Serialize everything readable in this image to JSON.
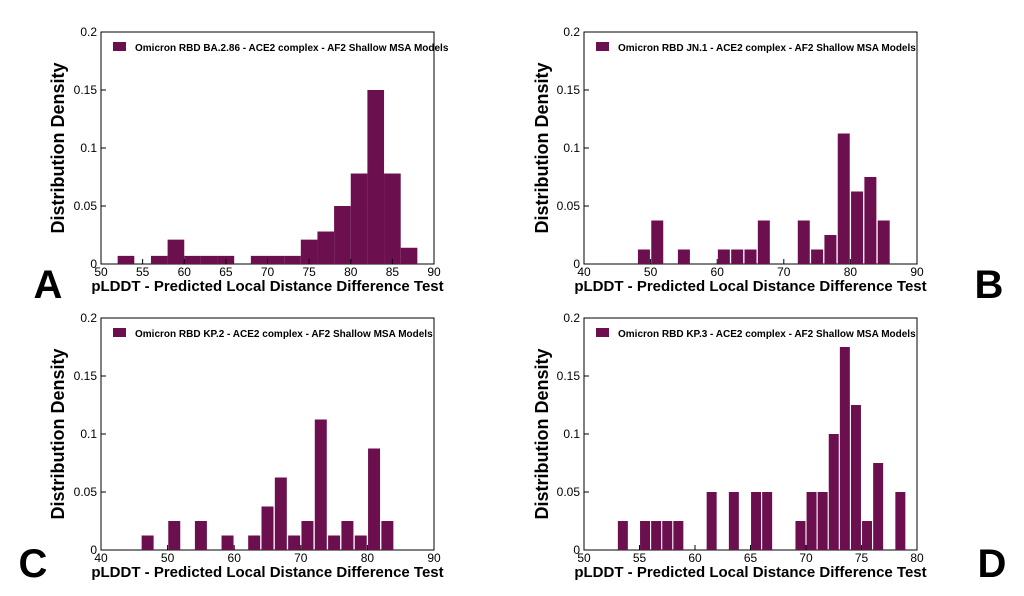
{
  "chart_data": [
    {
      "panel_label": "A",
      "type": "bar",
      "legend": "Omicron RBD BA.2.86 - ACE2 complex - AF2 Shallow MSA Models",
      "legend_position": "top-left",
      "xlabel": "pLDDT - Predicted Local Distance Difference Test",
      "ylabel": "Distribution Density",
      "xlim": [
        50,
        90
      ],
      "ylim": [
        0,
        0.2
      ],
      "xticks": [
        "50",
        "55",
        "60",
        "65",
        "70",
        "75",
        "80",
        "85",
        "90"
      ],
      "yticks": [
        "0",
        "0.05",
        "0.1",
        "0.15",
        "0.2"
      ],
      "color": "#6b0f4e",
      "bin_width": 2,
      "x": [
        53,
        57,
        59,
        61,
        63,
        65,
        69,
        71,
        73,
        75,
        77,
        79,
        81,
        83,
        85,
        87
      ],
      "values": [
        0.007,
        0.007,
        0.021,
        0.007,
        0.007,
        0.007,
        0.007,
        0.007,
        0.007,
        0.021,
        0.028,
        0.05,
        0.078,
        0.15,
        0.078,
        0.014
      ]
    },
    {
      "panel_label": "B",
      "type": "bar",
      "legend": "Omicron RBD JN.1 - ACE2 complex - AF2 Shallow MSA Models",
      "legend_position": "top-left",
      "xlabel": "pLDDT - Predicted Local Distance Difference Test",
      "ylabel": "Distribution Density",
      "xlim": [
        40,
        90
      ],
      "ylim": [
        0,
        0.2
      ],
      "xticks": [
        "40",
        "50",
        "60",
        "70",
        "80",
        "90"
      ],
      "yticks": [
        "0",
        "0.05",
        "0.1",
        "0.15",
        "0.2"
      ],
      "color": "#6b0f4e",
      "bin_width": 1.8,
      "x": [
        49,
        51,
        55,
        61,
        63,
        65,
        67,
        73,
        75,
        77,
        79,
        81,
        83,
        85
      ],
      "values": [
        0.0125,
        0.0375,
        0.0125,
        0.0125,
        0.0125,
        0.0125,
        0.0375,
        0.0375,
        0.0125,
        0.025,
        0.1125,
        0.0625,
        0.075,
        0.0375
      ]
    },
    {
      "panel_label": "C",
      "type": "bar",
      "legend": "Omicron RBD KP.2 - ACE2 complex - AF2 Shallow MSA Models",
      "legend_position": "top-left",
      "xlabel": "pLDDT - Predicted Local Distance Difference Test",
      "ylabel": "Distribution Density",
      "xlim": [
        40,
        90
      ],
      "ylim": [
        0,
        0.2
      ],
      "xticks": [
        "40",
        "50",
        "60",
        "70",
        "80",
        "90"
      ],
      "yticks": [
        "0",
        "0.05",
        "0.1",
        "0.15",
        "0.2"
      ],
      "color": "#6b0f4e",
      "bin_width": 1.8,
      "x": [
        47,
        51,
        55,
        59,
        63,
        65,
        67,
        69,
        71,
        73,
        75,
        77,
        79,
        81,
        83
      ],
      "values": [
        0.0125,
        0.025,
        0.025,
        0.0125,
        0.0125,
        0.0375,
        0.0625,
        0.0125,
        0.025,
        0.1125,
        0.0125,
        0.025,
        0.0125,
        0.0875,
        0.025
      ]
    },
    {
      "panel_label": "D",
      "type": "bar",
      "legend": "Omicron RBD KP.3 - ACE2 complex - AF2 Shallow MSA Models",
      "legend_position": "top-left",
      "xlabel": "pLDDT - Predicted Local Distance Difference Test",
      "ylabel": "Distribution Density",
      "xlim": [
        50,
        80
      ],
      "ylim": [
        0,
        0.2
      ],
      "xticks": [
        "50",
        "55",
        "60",
        "65",
        "70",
        "75",
        "80"
      ],
      "yticks": [
        "0",
        "0.05",
        "0.1",
        "0.15",
        "0.2"
      ],
      "color": "#6b0f4e",
      "bin_width": 0.9,
      "x": [
        53.5,
        55.5,
        56.5,
        57.5,
        58.5,
        61.5,
        63.5,
        65.5,
        66.5,
        69.5,
        70.5,
        71.5,
        72.5,
        73.5,
        74.5,
        75.5,
        76.5,
        78.5
      ],
      "values": [
        0.025,
        0.025,
        0.025,
        0.025,
        0.025,
        0.05,
        0.05,
        0.05,
        0.05,
        0.025,
        0.05,
        0.05,
        0.1,
        0.175,
        0.125,
        0.025,
        0.075,
        0.05
      ]
    }
  ]
}
